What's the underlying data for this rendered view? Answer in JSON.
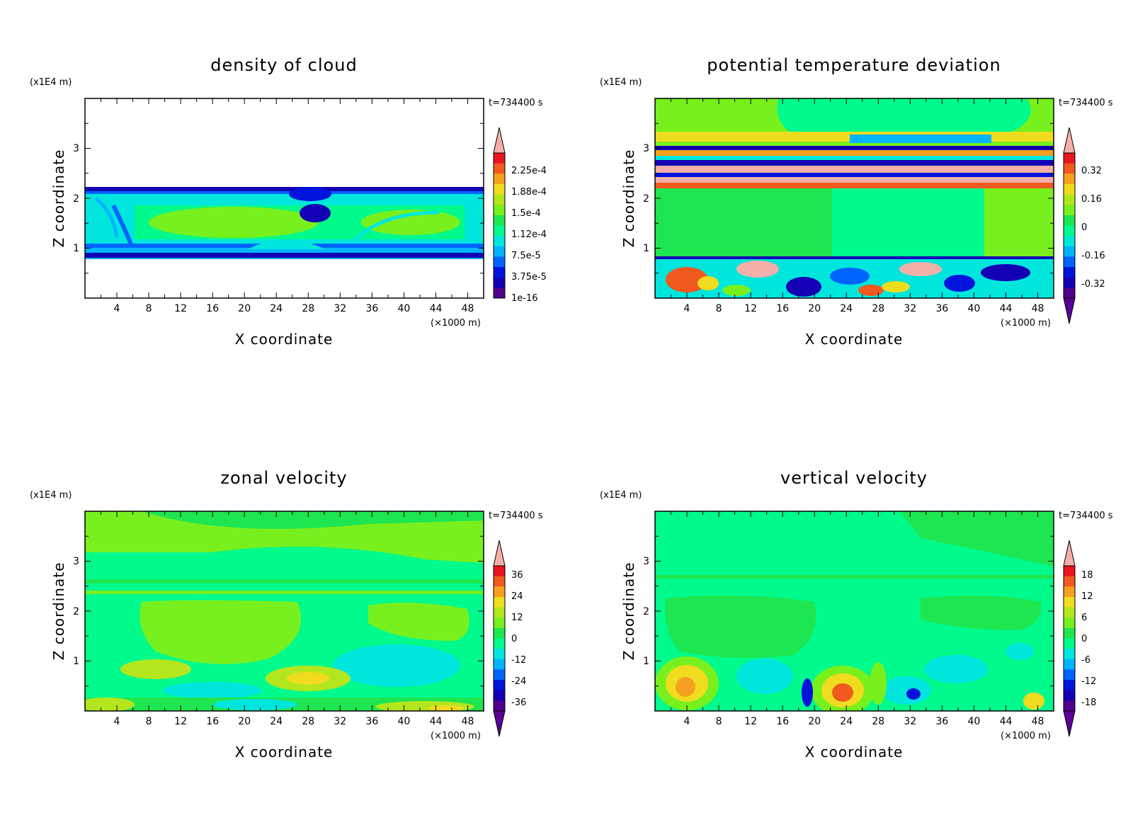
{
  "chart_data": [
    {
      "type": "heatmap",
      "title": "density of cloud",
      "xlabel": "X coordinate",
      "ylabel": "Z coordinate",
      "x_unit": "(×1000 m)",
      "y_unit": "(x1E4 m)",
      "time_label": "t=734400 s",
      "xlim": [
        0,
        50
      ],
      "ylim": [
        0,
        4
      ],
      "x_ticks": [
        "4",
        "8",
        "12",
        "16",
        "20",
        "24",
        "28",
        "32",
        "36",
        "40",
        "44",
        "48"
      ],
      "y_ticks": [
        "1",
        "2",
        "3"
      ],
      "colorbar_labels": [
        "2.25e-4",
        "1.88e-4",
        "1.5e-4",
        "1.12e-4",
        "7.5e-5",
        "3.75e-5",
        "1e-16"
      ],
      "colorbar_colors": [
        "#f4b0a8",
        "#e8141e",
        "#f05a1e",
        "#f5a01e",
        "#f0dc1e",
        "#b4e61e",
        "#78f01e",
        "#1ee650",
        "#00fa8c",
        "#00e6dc",
        "#00b4ff",
        "#0064ff",
        "#0014dc",
        "#1400b4",
        "#50008c",
        "#5a0096"
      ],
      "extend": "max"
    },
    {
      "type": "heatmap",
      "title": "potential temperature deviation",
      "xlabel": "X coordinate",
      "ylabel": "Z coordinate",
      "x_unit": "(×1000 m)",
      "y_unit": "(x1E4 m)",
      "time_label": "t=734400 s",
      "xlim": [
        0,
        50
      ],
      "ylim": [
        0,
        4
      ],
      "x_ticks": [
        "4",
        "8",
        "12",
        "16",
        "20",
        "24",
        "28",
        "32",
        "36",
        "40",
        "44",
        "48"
      ],
      "y_ticks": [
        "1",
        "2",
        "3"
      ],
      "colorbar_labels": [
        "0.32",
        "0.16",
        "0",
        "-0.16",
        "-0.32"
      ],
      "colorbar_colors": [
        "#f4b0a8",
        "#e8141e",
        "#f05a1e",
        "#f5a01e",
        "#f0dc1e",
        "#b4e61e",
        "#78f01e",
        "#1ee650",
        "#00fa8c",
        "#00e6dc",
        "#00b4ff",
        "#0064ff",
        "#0014dc",
        "#1400b4",
        "#50008c",
        "#5a0096"
      ],
      "extend": "both"
    },
    {
      "type": "heatmap",
      "title": "zonal velocity",
      "xlabel": "X coordinate",
      "ylabel": "Z coordinate",
      "x_unit": "(×1000 m)",
      "y_unit": "(x1E4 m)",
      "time_label": "t=734400 s",
      "xlim": [
        0,
        50
      ],
      "ylim": [
        0,
        4
      ],
      "x_ticks": [
        "4",
        "8",
        "12",
        "16",
        "20",
        "24",
        "28",
        "32",
        "36",
        "40",
        "44",
        "48"
      ],
      "y_ticks": [
        "1",
        "2",
        "3"
      ],
      "colorbar_labels": [
        "36",
        "24",
        "12",
        "0",
        "-12",
        "-24",
        "-36"
      ],
      "colorbar_colors": [
        "#f4b0a8",
        "#e8141e",
        "#f05a1e",
        "#f5a01e",
        "#f0dc1e",
        "#b4e61e",
        "#78f01e",
        "#1ee650",
        "#00fa8c",
        "#00e6dc",
        "#00b4ff",
        "#0064ff",
        "#0014dc",
        "#1400b4",
        "#50008c",
        "#5a0096"
      ],
      "extend": "both"
    },
    {
      "type": "heatmap",
      "title": "vertical velocity",
      "xlabel": "X coordinate",
      "ylabel": "Z coordinate",
      "x_unit": "(×1000 m)",
      "y_unit": "(x1E4 m)",
      "time_label": "t=734400 s",
      "xlim": [
        0,
        50
      ],
      "ylim": [
        0,
        4
      ],
      "x_ticks": [
        "4",
        "8",
        "12",
        "16",
        "20",
        "24",
        "28",
        "32",
        "36",
        "40",
        "44",
        "48"
      ],
      "y_ticks": [
        "1",
        "2",
        "3"
      ],
      "colorbar_labels": [
        "18",
        "12",
        "6",
        "0",
        "-6",
        "-12",
        "-18"
      ],
      "colorbar_colors": [
        "#f4b0a8",
        "#e8141e",
        "#f05a1e",
        "#f5a01e",
        "#f0dc1e",
        "#b4e61e",
        "#78f01e",
        "#1ee650",
        "#00fa8c",
        "#00e6dc",
        "#00b4ff",
        "#0064ff",
        "#0014dc",
        "#1400b4",
        "#50008c",
        "#5a0096"
      ],
      "extend": "both"
    }
  ]
}
